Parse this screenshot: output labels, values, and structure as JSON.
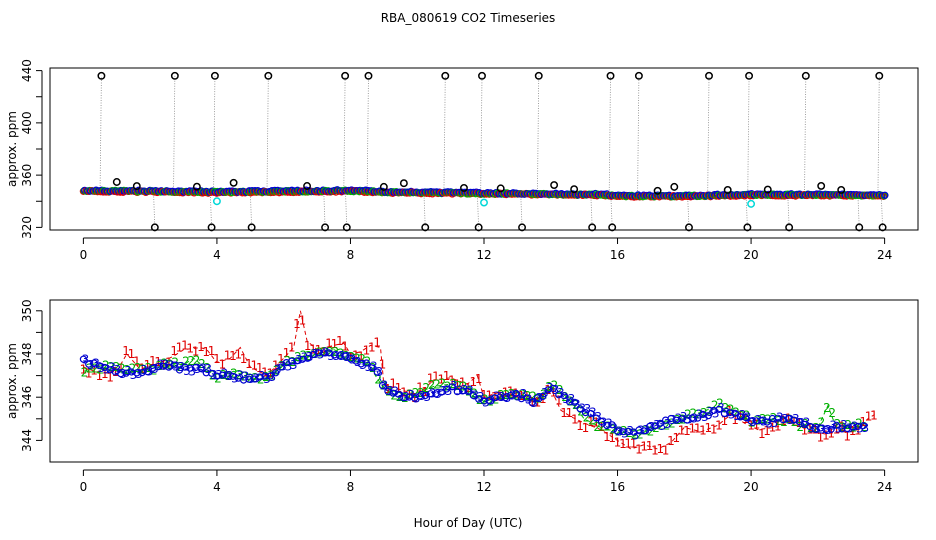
{
  "title": "RBA_080619  CO2 Timeseries",
  "xlabel": "Hour of Day (UTC)",
  "chart_data": [
    {
      "type": "scatter",
      "name": "top-panel",
      "ylabel": "approx. ppm",
      "xlim": [
        -1,
        25
      ],
      "ylim": [
        318,
        442
      ],
      "xticks": [
        0,
        4,
        8,
        12,
        16,
        20,
        24
      ],
      "yticks": [
        320,
        360,
        400,
        440
      ],
      "excursion_hours": [
        0.5,
        2.1,
        2.7,
        3.8,
        3.9,
        5.0,
        5.5,
        7.2,
        7.8,
        7.85,
        8.5,
        10.2,
        10.8,
        11.8,
        11.9,
        13.1,
        13.6,
        15.2,
        15.75,
        15.8,
        16.6,
        18.1,
        18.7,
        19.85,
        19.9,
        21.1,
        21.6,
        23.2,
        23.8,
        23.9
      ],
      "baseline": [
        {
          "x": 0,
          "y": 348
        },
        {
          "x": 4,
          "y": 347
        },
        {
          "x": 8,
          "y": 348
        },
        {
          "x": 9,
          "y": 347
        },
        {
          "x": 12,
          "y": 346
        },
        {
          "x": 15.5,
          "y": 345
        },
        {
          "x": 16,
          "y": 344
        },
        {
          "x": 18,
          "y": 344
        },
        {
          "x": 20,
          "y": 345
        },
        {
          "x": 24,
          "y": 344.5
        }
      ],
      "series": [
        {
          "name": "1",
          "color": "#e00000"
        },
        {
          "name": "2",
          "color": "#00b000"
        },
        {
          "name": "3",
          "color": "#0000d0"
        },
        {
          "name": "cal",
          "color": "#00d8d8"
        },
        {
          "name": "outlier",
          "color": "#000000"
        }
      ]
    },
    {
      "type": "line",
      "name": "bottom-panel",
      "ylabel": "approx. ppm",
      "xlim": [
        -1,
        25
      ],
      "ylim": [
        343,
        350.5
      ],
      "xticks": [
        0,
        4,
        8,
        12,
        16,
        20,
        24
      ],
      "yticks": [
        344,
        346,
        348,
        350
      ],
      "series": [
        {
          "name": "1",
          "color": "#e00000",
          "points": [
            {
              "x": 0,
              "y": 347.4
            },
            {
              "x": 0.5,
              "y": 347.1
            },
            {
              "x": 1,
              "y": 347.2
            },
            {
              "x": 1.3,
              "y": 348.0
            },
            {
              "x": 1.7,
              "y": 347.3
            },
            {
              "x": 2.3,
              "y": 347.6
            },
            {
              "x": 2.7,
              "y": 347.9
            },
            {
              "x": 3.0,
              "y": 348.2
            },
            {
              "x": 3.5,
              "y": 348.3
            },
            {
              "x": 3.7,
              "y": 348.2
            },
            {
              "x": 4.0,
              "y": 347.6
            },
            {
              "x": 4.4,
              "y": 347.8
            },
            {
              "x": 4.7,
              "y": 348.3
            },
            {
              "x": 5.0,
              "y": 347.4
            },
            {
              "x": 5.5,
              "y": 347.0
            },
            {
              "x": 6.0,
              "y": 347.8
            },
            {
              "x": 6.3,
              "y": 348.3
            },
            {
              "x": 6.5,
              "y": 350.0
            },
            {
              "x": 6.7,
              "y": 348.6
            },
            {
              "x": 7.0,
              "y": 348.2
            },
            {
              "x": 7.5,
              "y": 348.4
            },
            {
              "x": 7.8,
              "y": 348.5
            },
            {
              "x": 8.0,
              "y": 348.0
            },
            {
              "x": 8.3,
              "y": 348.1
            },
            {
              "x": 8.6,
              "y": 348.4
            },
            {
              "x": 8.9,
              "y": 348.3
            },
            {
              "x": 9.0,
              "y": 346.6
            },
            {
              "x": 9.4,
              "y": 346.4
            },
            {
              "x": 10.0,
              "y": 346.1
            },
            {
              "x": 10.5,
              "y": 346.8
            },
            {
              "x": 11.0,
              "y": 346.9
            },
            {
              "x": 11.5,
              "y": 346.6
            },
            {
              "x": 11.8,
              "y": 347.0
            },
            {
              "x": 12.0,
              "y": 346.0
            },
            {
              "x": 12.4,
              "y": 346.2
            },
            {
              "x": 13.0,
              "y": 346.0
            },
            {
              "x": 13.5,
              "y": 345.8
            },
            {
              "x": 14.0,
              "y": 346.4
            },
            {
              "x": 14.3,
              "y": 345.4
            },
            {
              "x": 14.6,
              "y": 345.1
            },
            {
              "x": 15.0,
              "y": 344.8
            },
            {
              "x": 15.5,
              "y": 344.5
            },
            {
              "x": 16.0,
              "y": 344.0
            },
            {
              "x": 16.4,
              "y": 343.6
            },
            {
              "x": 16.8,
              "y": 343.8
            },
            {
              "x": 17.2,
              "y": 343.6
            },
            {
              "x": 17.6,
              "y": 343.9
            },
            {
              "x": 18.0,
              "y": 344.6
            },
            {
              "x": 18.5,
              "y": 344.4
            },
            {
              "x": 19.0,
              "y": 344.7
            },
            {
              "x": 19.4,
              "y": 345.2
            },
            {
              "x": 19.8,
              "y": 344.8
            },
            {
              "x": 20.2,
              "y": 344.5
            },
            {
              "x": 20.7,
              "y": 344.6
            },
            {
              "x": 21.2,
              "y": 344.8
            },
            {
              "x": 21.7,
              "y": 344.5
            },
            {
              "x": 22.2,
              "y": 344.3
            },
            {
              "x": 22.7,
              "y": 344.4
            },
            {
              "x": 23.1,
              "y": 344.4
            },
            {
              "x": 23.5,
              "y": 345.0
            },
            {
              "x": 23.7,
              "y": 345.2
            }
          ]
        },
        {
          "name": "2",
          "color": "#00b000",
          "points": [
            {
              "x": 0,
              "y": 347.2
            },
            {
              "x": 0.5,
              "y": 347.4
            },
            {
              "x": 1,
              "y": 347.3
            },
            {
              "x": 1.5,
              "y": 347.2
            },
            {
              "x": 2.0,
              "y": 347.3
            },
            {
              "x": 2.5,
              "y": 347.6
            },
            {
              "x": 3.0,
              "y": 347.5
            },
            {
              "x": 3.3,
              "y": 347.8
            },
            {
              "x": 3.7,
              "y": 347.3
            },
            {
              "x": 4.0,
              "y": 346.9
            },
            {
              "x": 4.5,
              "y": 347.2
            },
            {
              "x": 5.0,
              "y": 346.9
            },
            {
              "x": 5.5,
              "y": 346.8
            },
            {
              "x": 6.0,
              "y": 347.6
            },
            {
              "x": 6.5,
              "y": 347.8
            },
            {
              "x": 7.0,
              "y": 348.0
            },
            {
              "x": 7.5,
              "y": 348.2
            },
            {
              "x": 8.0,
              "y": 347.9
            },
            {
              "x": 8.5,
              "y": 347.6
            },
            {
              "x": 9.0,
              "y": 346.4
            },
            {
              "x": 9.5,
              "y": 345.9
            },
            {
              "x": 10.0,
              "y": 346.2
            },
            {
              "x": 10.5,
              "y": 346.5
            },
            {
              "x": 11.0,
              "y": 346.6
            },
            {
              "x": 11.5,
              "y": 346.4
            },
            {
              "x": 12.0,
              "y": 345.8
            },
            {
              "x": 12.5,
              "y": 346.0
            },
            {
              "x": 13.0,
              "y": 346.2
            },
            {
              "x": 13.5,
              "y": 345.9
            },
            {
              "x": 14.0,
              "y": 346.5
            },
            {
              "x": 14.5,
              "y": 346.0
            },
            {
              "x": 15.0,
              "y": 345.0
            },
            {
              "x": 15.5,
              "y": 344.6
            },
            {
              "x": 16.0,
              "y": 344.4
            },
            {
              "x": 16.5,
              "y": 344.2
            },
            {
              "x": 17.0,
              "y": 344.5
            },
            {
              "x": 17.5,
              "y": 344.8
            },
            {
              "x": 18.0,
              "y": 345.1
            },
            {
              "x": 18.5,
              "y": 345.3
            },
            {
              "x": 19.0,
              "y": 345.6
            },
            {
              "x": 19.5,
              "y": 345.4
            },
            {
              "x": 20.0,
              "y": 344.9
            },
            {
              "x": 20.5,
              "y": 345.0
            },
            {
              "x": 21.0,
              "y": 344.9
            },
            {
              "x": 21.5,
              "y": 344.7
            },
            {
              "x": 22.0,
              "y": 344.6
            },
            {
              "x": 22.3,
              "y": 345.6
            },
            {
              "x": 22.5,
              "y": 344.8
            },
            {
              "x": 23.0,
              "y": 344.6
            },
            {
              "x": 23.5,
              "y": 344.8
            }
          ]
        },
        {
          "name": "3",
          "color": "#0000d0",
          "points": [
            {
              "x": 0,
              "y": 347.7
            },
            {
              "x": 0.5,
              "y": 347.4
            },
            {
              "x": 1,
              "y": 347.2
            },
            {
              "x": 1.5,
              "y": 347.1
            },
            {
              "x": 2.0,
              "y": 347.3
            },
            {
              "x": 2.5,
              "y": 347.5
            },
            {
              "x": 3.0,
              "y": 347.3
            },
            {
              "x": 3.5,
              "y": 347.3
            },
            {
              "x": 3.8,
              "y": 347.1
            },
            {
              "x": 4.2,
              "y": 347.0
            },
            {
              "x": 4.6,
              "y": 346.9
            },
            {
              "x": 5.0,
              "y": 346.8
            },
            {
              "x": 5.5,
              "y": 346.9
            },
            {
              "x": 6.0,
              "y": 347.5
            },
            {
              "x": 6.5,
              "y": 347.7
            },
            {
              "x": 7.0,
              "y": 348.0
            },
            {
              "x": 7.5,
              "y": 348.0
            },
            {
              "x": 8.0,
              "y": 347.8
            },
            {
              "x": 8.5,
              "y": 347.5
            },
            {
              "x": 8.8,
              "y": 347.2
            },
            {
              "x": 9.0,
              "y": 346.4
            },
            {
              "x": 9.5,
              "y": 346.0
            },
            {
              "x": 10.0,
              "y": 346.0
            },
            {
              "x": 10.5,
              "y": 346.2
            },
            {
              "x": 11.0,
              "y": 346.4
            },
            {
              "x": 11.5,
              "y": 346.2
            },
            {
              "x": 12.0,
              "y": 345.8
            },
            {
              "x": 12.5,
              "y": 346.0
            },
            {
              "x": 13.0,
              "y": 346.1
            },
            {
              "x": 13.5,
              "y": 345.8
            },
            {
              "x": 14.0,
              "y": 346.4
            },
            {
              "x": 14.5,
              "y": 345.9
            },
            {
              "x": 15.0,
              "y": 345.4
            },
            {
              "x": 15.5,
              "y": 344.9
            },
            {
              "x": 16.0,
              "y": 344.5
            },
            {
              "x": 16.5,
              "y": 344.3
            },
            {
              "x": 17.0,
              "y": 344.6
            },
            {
              "x": 17.5,
              "y": 344.9
            },
            {
              "x": 18.0,
              "y": 345.0
            },
            {
              "x": 18.5,
              "y": 345.1
            },
            {
              "x": 19.0,
              "y": 345.4
            },
            {
              "x": 19.5,
              "y": 345.2
            },
            {
              "x": 20.0,
              "y": 344.9
            },
            {
              "x": 20.5,
              "y": 344.9
            },
            {
              "x": 21.0,
              "y": 345.0
            },
            {
              "x": 21.5,
              "y": 344.8
            },
            {
              "x": 22.0,
              "y": 344.5
            },
            {
              "x": 22.5,
              "y": 344.6
            },
            {
              "x": 23.0,
              "y": 344.6
            },
            {
              "x": 23.5,
              "y": 344.7
            }
          ]
        }
      ]
    }
  ]
}
